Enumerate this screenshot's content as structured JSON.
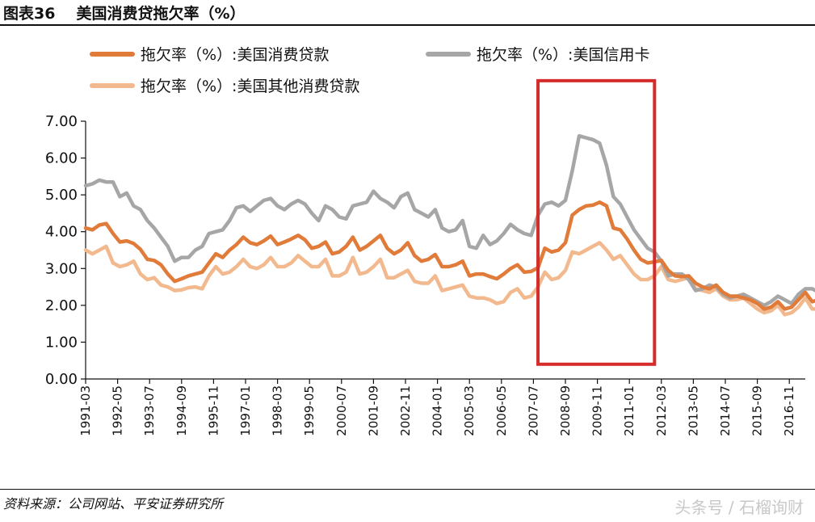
{
  "header": {
    "figure_label": "图表36",
    "title": "美国消费贷拖欠率（%）"
  },
  "footer": {
    "source": "资料来源：公司网站、平安证券研究所",
    "watermark": "头条号 / 石榴询财"
  },
  "chart_data": {
    "type": "line",
    "title": "美国消费贷拖欠率（%）",
    "xlabel": "",
    "ylabel": "",
    "ylim": [
      0,
      7
    ],
    "y_ticks": [
      "0.00",
      "1.00",
      "2.00",
      "3.00",
      "4.00",
      "5.00",
      "6.00",
      "7.00"
    ],
    "x_ticks": [
      "1991-03",
      "1992-05",
      "1993-07",
      "1994-09",
      "1995-11",
      "1997-01",
      "1998-03",
      "1999-05",
      "2000-07",
      "2001-09",
      "2002-11",
      "2004-01",
      "2005-03",
      "2006-05",
      "2007-07",
      "2008-09",
      "2009-11",
      "2011-01",
      "2012-03",
      "2013-05",
      "2014-07",
      "2015-09",
      "2016-11"
    ],
    "grid": false,
    "legend_position": "top",
    "x_start_year": 1991,
    "x_start_quarter": 1,
    "x_frequency": "quarterly",
    "highlight_box": {
      "x_from": "2007-Q3",
      "x_to": "2011-Q4",
      "y_from": 0.4,
      "y_to": 8.1,
      "color": "#d62b2b"
    },
    "series": [
      {
        "name": "拖欠率（%）:美国消费贷款",
        "color": "#e07b39",
        "values": [
          4.1,
          4.05,
          4.18,
          4.22,
          3.95,
          3.72,
          3.75,
          3.68,
          3.52,
          3.25,
          3.22,
          3.1,
          2.85,
          2.65,
          2.72,
          2.8,
          2.85,
          2.9,
          3.15,
          3.4,
          3.3,
          3.5,
          3.65,
          3.85,
          3.7,
          3.65,
          3.75,
          3.88,
          3.65,
          3.72,
          3.8,
          3.9,
          3.78,
          3.55,
          3.6,
          3.72,
          3.4,
          3.45,
          3.6,
          3.85,
          3.5,
          3.6,
          3.75,
          3.9,
          3.55,
          3.4,
          3.5,
          3.7,
          3.35,
          3.2,
          3.25,
          3.38,
          3.05,
          3.05,
          3.1,
          3.2,
          2.8,
          2.85,
          2.85,
          2.78,
          2.72,
          2.85,
          3.0,
          3.1,
          2.9,
          2.92,
          3.02,
          3.55,
          3.45,
          3.5,
          3.7,
          4.45,
          4.6,
          4.7,
          4.72,
          4.8,
          4.7,
          4.1,
          4.05,
          3.8,
          3.5,
          3.25,
          3.15,
          3.18,
          3.22,
          2.95,
          2.8,
          2.78,
          2.8,
          2.6,
          2.5,
          2.45,
          2.55,
          2.35,
          2.25,
          2.25,
          2.2,
          2.15,
          2.05,
          1.9,
          1.95,
          2.1,
          1.9,
          1.95,
          2.15,
          2.35,
          2.1,
          2.15,
          2.25,
          2.4
        ]
      },
      {
        "name": "拖欠率（%）:美国信用卡",
        "color": "#a6a6a6",
        "values": [
          5.25,
          5.3,
          5.4,
          5.35,
          5.35,
          4.95,
          5.05,
          4.7,
          4.6,
          4.3,
          4.1,
          3.85,
          3.6,
          3.2,
          3.3,
          3.3,
          3.5,
          3.6,
          3.95,
          4.0,
          4.05,
          4.3,
          4.65,
          4.7,
          4.55,
          4.7,
          4.85,
          4.9,
          4.7,
          4.6,
          4.75,
          4.85,
          4.75,
          4.5,
          4.3,
          4.7,
          4.6,
          4.4,
          4.35,
          4.7,
          4.75,
          4.8,
          5.1,
          4.9,
          4.8,
          4.65,
          4.95,
          5.05,
          4.6,
          4.5,
          4.4,
          4.6,
          4.1,
          4.0,
          4.05,
          4.3,
          3.6,
          3.55,
          3.9,
          3.65,
          3.75,
          3.95,
          4.2,
          4.05,
          3.95,
          3.9,
          4.45,
          4.75,
          4.8,
          4.7,
          4.85,
          5.65,
          6.6,
          6.55,
          6.5,
          6.4,
          5.8,
          4.95,
          4.75,
          4.4,
          4.05,
          3.8,
          3.55,
          3.45,
          3.2,
          2.8,
          2.85,
          2.85,
          2.7,
          2.4,
          2.45,
          2.55,
          2.5,
          2.3,
          2.2,
          2.25,
          2.3,
          2.2,
          2.1,
          2.0,
          2.1,
          2.25,
          2.15,
          2.05,
          2.3,
          2.45,
          2.45,
          2.35,
          2.6,
          2.55
        ]
      },
      {
        "name": "拖欠率（%）:美国其他消费贷款",
        "color": "#f2b98f",
        "values": [
          3.5,
          3.4,
          3.5,
          3.6,
          3.15,
          3.05,
          3.1,
          3.2,
          2.85,
          2.7,
          2.75,
          2.55,
          2.5,
          2.4,
          2.42,
          2.48,
          2.5,
          2.45,
          2.8,
          3.05,
          2.85,
          2.9,
          3.05,
          3.25,
          3.05,
          3.0,
          3.1,
          3.3,
          3.05,
          3.05,
          3.15,
          3.35,
          3.2,
          3.05,
          3.05,
          3.25,
          2.8,
          2.8,
          2.9,
          3.3,
          2.85,
          2.9,
          3.05,
          3.25,
          2.75,
          2.75,
          2.85,
          2.95,
          2.65,
          2.6,
          2.6,
          2.8,
          2.4,
          2.45,
          2.5,
          2.55,
          2.25,
          2.2,
          2.2,
          2.15,
          2.05,
          2.1,
          2.35,
          2.45,
          2.2,
          2.25,
          2.5,
          2.9,
          2.7,
          2.75,
          2.95,
          3.45,
          3.4,
          3.5,
          3.6,
          3.7,
          3.5,
          3.25,
          3.35,
          3.1,
          2.85,
          2.7,
          2.7,
          2.8,
          3.05,
          2.7,
          2.65,
          2.7,
          2.75,
          2.45,
          2.4,
          2.35,
          2.45,
          2.25,
          2.15,
          2.15,
          2.2,
          2.05,
          1.9,
          1.8,
          1.85,
          2.0,
          1.75,
          1.8,
          1.95,
          2.2,
          1.9,
          1.9,
          2.0,
          2.2
        ]
      }
    ]
  }
}
